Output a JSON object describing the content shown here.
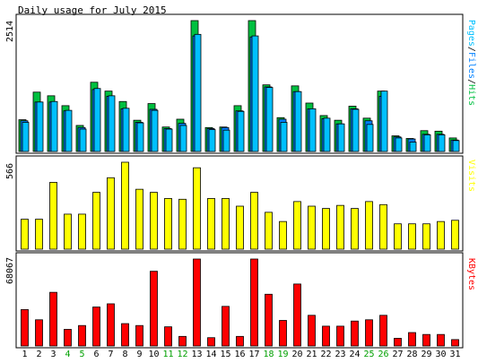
{
  "colors": {
    "background": "#ffffff",
    "pages": "#00c0ff",
    "files": "#0080ff",
    "hits": "#00c040",
    "visits": "#ffff00",
    "kbytes": "#ff0000",
    "weekend_label": "#00a000",
    "border": "#000000"
  },
  "chart_data": [
    {
      "type": "bar",
      "title": "Daily usage for July 2015",
      "ylabel_max": "2514",
      "ylim": [
        0,
        2514
      ],
      "legend_position": "right",
      "legend": {
        "pages": "Pages",
        "files": "Files",
        "hits": "Hits",
        "sep1": "/",
        "sep2": "/"
      },
      "categories": [
        "1",
        "2",
        "3",
        "4",
        "5",
        "6",
        "7",
        "8",
        "9",
        "10",
        "11",
        "12",
        "13",
        "14",
        "15",
        "16",
        "17",
        "18",
        "19",
        "20",
        "21",
        "22",
        "23",
        "24",
        "25",
        "26",
        "27",
        "28",
        "29",
        "30",
        "31"
      ],
      "weekend_days": [
        "4",
        "5",
        "11",
        "12",
        "18",
        "19",
        "25",
        "26"
      ],
      "series": [
        {
          "name": "Hits",
          "values": [
            610,
            1140,
            1070,
            880,
            500,
            1330,
            1160,
            960,
            600,
            920,
            470,
            620,
            2514,
            460,
            470,
            880,
            2514,
            1280,
            650,
            1260,
            930,
            690,
            600,
            870,
            640,
            1160,
            300,
            250,
            400,
            390,
            260
          ]
        },
        {
          "name": "Files",
          "values": [
            590,
            950,
            950,
            780,
            460,
            1190,
            1060,
            820,
            560,
            810,
            440,
            540,
            2220,
            440,
            460,
            780,
            2200,
            1240,
            620,
            1150,
            820,
            630,
            530,
            820,
            590,
            1060,
            280,
            240,
            330,
            330,
            220
          ]
        },
        {
          "name": "Pages",
          "values": [
            560,
            950,
            960,
            790,
            430,
            1210,
            1070,
            830,
            550,
            790,
            430,
            500,
            2250,
            420,
            410,
            770,
            2220,
            1230,
            560,
            1150,
            820,
            640,
            530,
            810,
            520,
            1160,
            260,
            180,
            320,
            320,
            210
          ]
        }
      ]
    },
    {
      "type": "bar",
      "ylabel_max": "566",
      "ylim": [
        0,
        566
      ],
      "legend": "Visits",
      "categories": [
        "1",
        "2",
        "3",
        "4",
        "5",
        "6",
        "7",
        "8",
        "9",
        "10",
        "11",
        "12",
        "13",
        "14",
        "15",
        "16",
        "17",
        "18",
        "19",
        "20",
        "21",
        "22",
        "23",
        "24",
        "25",
        "26",
        "27",
        "28",
        "29",
        "30",
        "31"
      ],
      "series": [
        {
          "name": "Visits",
          "values": [
            195,
            195,
            435,
            228,
            228,
            370,
            465,
            566,
            390,
            370,
            330,
            325,
            530,
            330,
            330,
            280,
            370,
            240,
            180,
            310,
            280,
            265,
            285,
            265,
            310,
            290,
            165,
            165,
            165,
            180,
            188
          ]
        }
      ]
    },
    {
      "type": "bar",
      "ylabel_max": "68067",
      "ylim": [
        0,
        68067
      ],
      "legend": "KBytes",
      "categories": [
        "1",
        "2",
        "3",
        "4",
        "5",
        "6",
        "7",
        "8",
        "9",
        "10",
        "11",
        "12",
        "13",
        "14",
        "15",
        "16",
        "17",
        "18",
        "19",
        "20",
        "21",
        "22",
        "23",
        "24",
        "25",
        "26",
        "27",
        "28",
        "29",
        "30",
        "31"
      ],
      "series": [
        {
          "name": "KBytes",
          "values": [
            28500,
            20500,
            42000,
            13000,
            16000,
            30500,
            33000,
            17500,
            16000,
            58500,
            15000,
            7500,
            68067,
            6500,
            31000,
            7500,
            68067,
            40500,
            20000,
            48500,
            24000,
            15500,
            15500,
            19500,
            20500,
            24000,
            6000,
            10500,
            9000,
            9000,
            5000
          ]
        }
      ]
    }
  ]
}
